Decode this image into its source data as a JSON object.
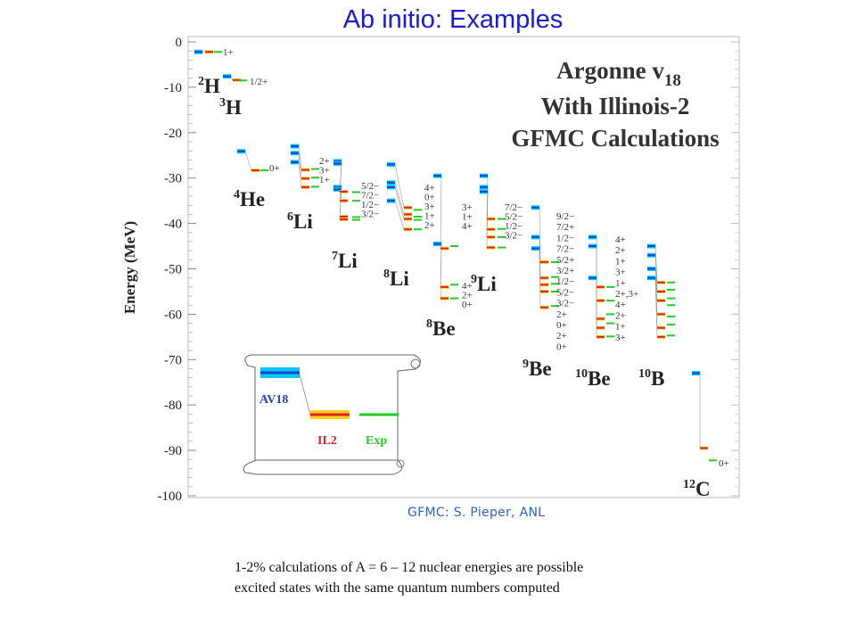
{
  "slide": {
    "title": "Ab initio: Examples",
    "credit": "GFMC: S. Pieper, ANL",
    "caption_lines": [
      "1-2% calculations of A = 6 – 12 nuclear energies are possible",
      "excited states with the same quantum numbers computed"
    ]
  },
  "chart_data": {
    "type": "level-scheme",
    "title_lines": [
      "Argonne v18",
      "With Illinois-2",
      "GFMC Calculations"
    ],
    "ylabel": "Energy (MeV)",
    "ylim": [
      -100,
      0
    ],
    "yticks": [
      0,
      -10,
      -20,
      -30,
      -40,
      -50,
      -60,
      -70,
      -80,
      -90,
      -100
    ],
    "colors": {
      "AV18": "#1f3fd6",
      "AV18_band": "#00c8f0",
      "IL2": "#e0202a",
      "IL2_band": "#ffd21a",
      "Exp": "#22cc22",
      "connector": "#999999"
    },
    "legend": {
      "items": [
        "AV18",
        "IL2",
        "Exp"
      ]
    },
    "nuclei": [
      {
        "label": "2H",
        "mass": "2",
        "sym": "H",
        "av18": [
          -2.2
        ],
        "il2": [
          -2.2
        ],
        "exp": [
          -2.2
        ],
        "spins": [
          "1+"
        ]
      },
      {
        "label": "3H",
        "mass": "3",
        "sym": "H",
        "av18": [
          -7.6
        ],
        "il2": [
          -8.4
        ],
        "exp": [
          -8.5
        ],
        "spins": [
          "1/2+"
        ]
      },
      {
        "label": "4He",
        "mass": "4",
        "sym": "He",
        "av18": [
          -24.1
        ],
        "il2": [
          -28.3
        ],
        "exp": [
          -28.3
        ],
        "spins": [
          "0+"
        ]
      },
      {
        "label": "6Li",
        "mass": "6",
        "sym": "Li",
        "av18": [
          -23.0,
          -24.5,
          -26.5
        ],
        "il2": [
          -28.2,
          -30.1,
          -32.0
        ],
        "exp": [
          -28.0,
          -29.9,
          -31.9
        ],
        "spins": [
          "2+",
          "3+",
          "1+"
        ]
      },
      {
        "label": "7Li",
        "mass": "7",
        "sym": "Li",
        "av18": [
          -26.3,
          -26.8,
          -32.0,
          -32.5
        ],
        "il2": [
          -33.0,
          -35.0,
          -38.5,
          -39.1
        ],
        "exp": [
          -33.1,
          -35.0,
          -38.6,
          -39.2
        ],
        "spins": [
          "5/2−",
          "7/2−",
          "1/2−",
          "3/2−"
        ]
      },
      {
        "label": "8Li",
        "mass": "8",
        "sym": "Li",
        "av18": [
          -27.0,
          -31.0,
          -32.0,
          -35.0
        ],
        "il2": [
          -36.5,
          -38.0,
          -39.0,
          -41.3
        ],
        "exp": [
          -37.0,
          -38.5,
          -39.2,
          -41.3
        ],
        "spins": [
          "4+",
          "0+",
          "3+",
          "1+",
          "2+"
        ]
      },
      {
        "label": "8Be",
        "mass": "8",
        "sym": "Be",
        "av18": [
          -29.5,
          -44.5
        ],
        "il2": [
          -45.5,
          -54.0,
          -56.5
        ],
        "exp": [
          -45.0,
          -53.5,
          -56.5
        ],
        "spins": [
          "4+",
          "2+",
          "0+"
        ]
      },
      {
        "label": "9Li",
        "mass": "9",
        "sym": "Li",
        "av18": [
          -29.5,
          -32.0,
          -33.0
        ],
        "il2": [
          -39.0,
          -41.3,
          -43.0,
          -45.3
        ],
        "exp": [
          -39.0,
          -41.2,
          -43.0,
          -45.3
        ],
        "spins": [
          "3+",
          "1+",
          "4+"
        ]
      },
      {
        "label": "9Be",
        "mass": "9",
        "sym": "Be",
        "av18": [
          -36.5,
          -43.0,
          -45.5
        ],
        "il2": [
          -48.5,
          -52.0,
          -53.5,
          -55.0,
          -58.5
        ],
        "exp": [
          -48.5,
          -51.8,
          -53.3,
          -55.0,
          -58.2
        ],
        "spins": [
          "7/2−",
          "5/2−",
          "1/2−",
          "3/2−"
        ]
      },
      {
        "label": "10Be",
        "mass": "10",
        "sym": "Be",
        "av18": [
          -43.0,
          -45.0,
          -52.0
        ],
        "il2": [
          -54.0,
          -57.0,
          -61.0,
          -63.0,
          -65.0
        ],
        "exp": [
          -54.0,
          -57.0,
          -60.0,
          -62.0,
          -64.9
        ],
        "spins": [
          "9/2−",
          "7/2+",
          "1/2−",
          "7/2−",
          "5/2+",
          "3/2+",
          "1/2−",
          "5/2−",
          "3/2−",
          "2+",
          "0+",
          "2+",
          "0+"
        ]
      },
      {
        "label": "10B",
        "mass": "10",
        "sym": "B",
        "av18": [
          -45.0,
          -47.0,
          -50.0,
          -52.0
        ],
        "il2": [
          -53.0,
          -55.0,
          -57.0,
          -60.0,
          -63.0,
          -65.0
        ],
        "exp": [
          -53.0,
          -54.6,
          -56.5,
          -58.0,
          -60.5,
          -62.3,
          -64.7
        ],
        "spins": [
          "4+",
          "2+",
          "1+",
          "3+",
          "1+",
          "2+,3+",
          "4+",
          "2+",
          "1+",
          "3+"
        ]
      },
      {
        "label": "12C",
        "mass": "12",
        "sym": "C",
        "av18": [
          -73.0
        ],
        "il2": [
          -89.5
        ],
        "exp": [
          -92.2
        ],
        "spins": [
          "0+"
        ]
      }
    ]
  }
}
